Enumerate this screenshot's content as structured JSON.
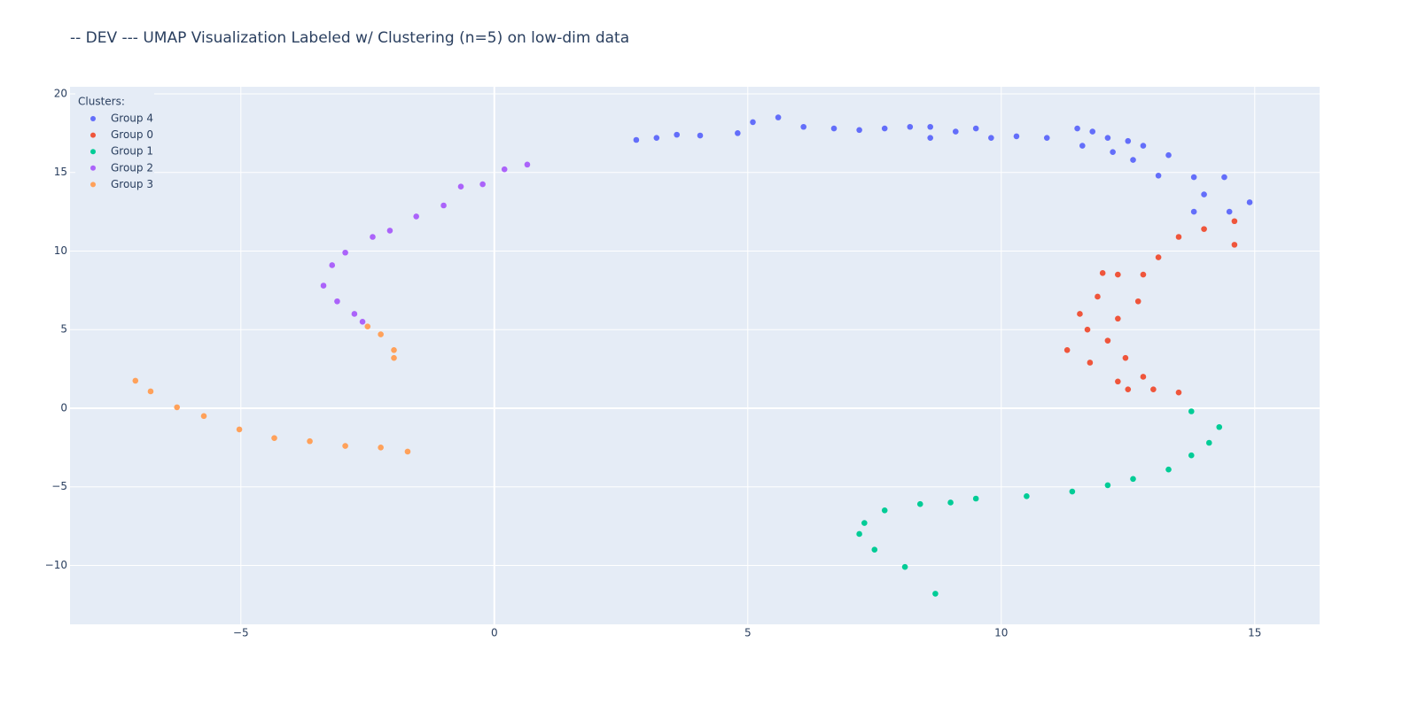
{
  "chart_data": {
    "type": "scatter",
    "title": "-- DEV --- UMAP Visualization   Labeled w/ Clustering (n=5) on low-dim data",
    "legend_title": "Clusters:",
    "legend": "top-left",
    "grid": true,
    "xlim": [
      -8.37,
      16.28
    ],
    "ylim": [
      -13.75,
      20.45
    ],
    "xticks": [
      {
        "value": -5,
        "label": "−5"
      },
      0,
      5,
      10,
      15
    ],
    "yticks": [
      {
        "value": -10,
        "label": "−10"
      },
      {
        "value": -5,
        "label": "−5"
      },
      0,
      5,
      10,
      15,
      20
    ],
    "series": [
      {
        "name": "Group 4",
        "color": "#636efa",
        "x": [
          2.8,
          3.2,
          3.6,
          4.06,
          4.8,
          5.1,
          5.6,
          6.1,
          6.7,
          7.2,
          7.7,
          8.2,
          8.6,
          8.6,
          9.1,
          9.5,
          9.8,
          10.3,
          10.9,
          11.5,
          11.8,
          12.1,
          12.5,
          12.8,
          13.3,
          12.6,
          13.1,
          13.8,
          14.4,
          14.9,
          14.5,
          13.8,
          14.0,
          11.6,
          12.2
        ],
        "y": [
          17.07,
          17.2,
          17.4,
          17.35,
          17.5,
          18.2,
          18.5,
          17.9,
          17.8,
          17.7,
          17.8,
          17.9,
          17.9,
          17.2,
          17.6,
          17.8,
          17.2,
          17.3,
          17.2,
          17.8,
          17.6,
          17.2,
          17.0,
          16.7,
          16.1,
          15.8,
          14.8,
          14.7,
          14.7,
          13.1,
          12.5,
          12.5,
          13.6,
          16.7,
          16.3
        ]
      },
      {
        "name": "Group 0",
        "color": "#EF553B",
        "x": [
          14.6,
          14.6,
          14.0,
          13.5,
          13.1,
          12.8,
          12.3,
          12.0,
          12.7,
          11.9,
          11.55,
          11.7,
          12.3,
          12.1,
          11.3,
          11.75,
          12.45,
          12.3,
          12.8,
          13.0,
          13.5,
          12.5
        ],
        "y": [
          11.9,
          10.4,
          11.4,
          10.9,
          9.6,
          8.5,
          8.5,
          8.6,
          6.8,
          7.1,
          6.0,
          5.0,
          5.7,
          4.3,
          3.7,
          2.9,
          3.2,
          1.7,
          2.0,
          1.2,
          1.0,
          1.2
        ]
      },
      {
        "name": "Group 1",
        "color": "#00cc96",
        "x": [
          13.75,
          14.3,
          14.1,
          13.75,
          13.3,
          12.6,
          12.1,
          11.4,
          10.5,
          9.5,
          9.0,
          8.4,
          7.7,
          7.3,
          7.2,
          7.5,
          8.1,
          8.7
        ],
        "y": [
          -0.2,
          -1.2,
          -2.2,
          -3.0,
          -3.9,
          -4.5,
          -4.9,
          -5.3,
          -5.6,
          -5.75,
          -6.0,
          -6.1,
          -6.5,
          -7.3,
          -8.0,
          -9.0,
          -10.1,
          -11.8
        ]
      },
      {
        "name": "Group 2",
        "color": "#ab63fa",
        "x": [
          0.65,
          0.2,
          -0.23,
          -0.66,
          -1.0,
          -1.54,
          -2.06,
          -2.4,
          -2.94,
          -3.2,
          -3.37,
          -3.1,
          -2.76,
          -2.6
        ],
        "y": [
          15.5,
          15.2,
          14.25,
          14.1,
          12.9,
          12.2,
          11.3,
          10.9,
          9.9,
          9.1,
          7.8,
          6.8,
          6.0,
          5.5
        ]
      },
      {
        "name": "Group 3",
        "color": "#FFA15A",
        "x": [
          -2.5,
          -2.24,
          -1.98,
          -1.98,
          -7.08,
          -6.78,
          -6.26,
          -5.73,
          -5.03,
          -4.34,
          -3.64,
          -2.94,
          -2.24,
          -1.71
        ],
        "y": [
          5.2,
          4.7,
          3.7,
          3.2,
          1.75,
          1.07,
          0.06,
          -0.5,
          -1.35,
          -1.9,
          -2.1,
          -2.4,
          -2.5,
          -2.76
        ]
      }
    ]
  }
}
